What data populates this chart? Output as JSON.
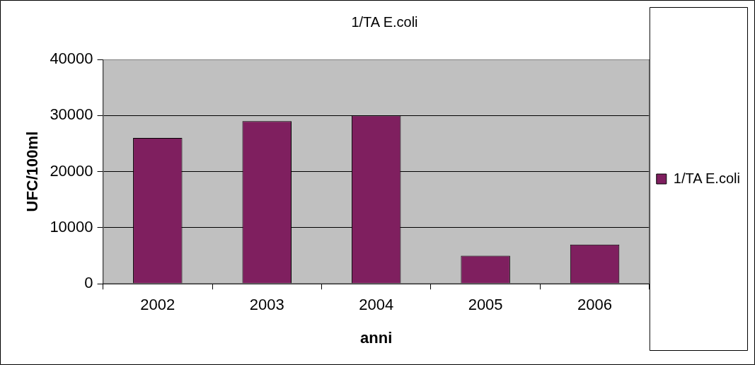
{
  "chart_data": {
    "type": "bar",
    "title": "1/TA E.coli",
    "xlabel": "anni",
    "ylabel": "UFC/100ml",
    "categories": [
      "2002",
      "2003",
      "2004",
      "2005",
      "2006"
    ],
    "series": [
      {
        "name": "1/TA E.coli",
        "color": "#7f1f5f",
        "values": [
          26000,
          29000,
          30000,
          5000,
          7000
        ]
      }
    ],
    "ylim": [
      0,
      40000
    ],
    "yticks": [
      0,
      10000,
      20000,
      30000,
      40000
    ],
    "grid": "y",
    "legend": "right"
  }
}
